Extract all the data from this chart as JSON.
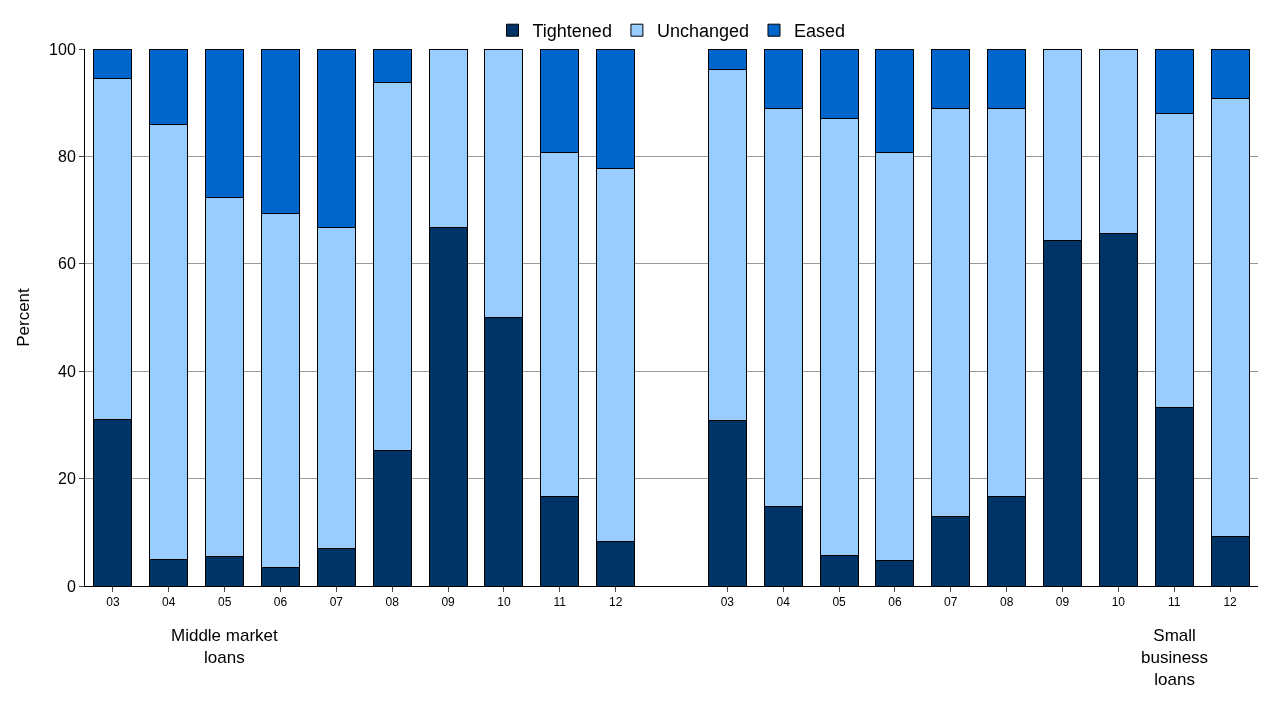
{
  "chart_data": {
    "type": "bar",
    "stacked": true,
    "ylabel": "Percent",
    "categories": [
      "03",
      "04",
      "05",
      "06",
      "07",
      "08",
      "09",
      "10",
      "11",
      "12",
      null,
      "03",
      "04",
      "05",
      "06",
      "07",
      "08",
      "09",
      "10",
      "11",
      "12"
    ],
    "series": [
      {
        "name": "Tightened",
        "color": "#003366",
        "values": [
          31,
          5,
          5.5,
          3.4,
          7,
          25.2,
          66.7,
          50,
          16.7,
          8.3,
          null,
          30.8,
          14.8,
          5.6,
          4.8,
          13,
          16.7,
          64.3,
          65.7,
          33.3,
          9.3
        ]
      },
      {
        "name": "Unchanged",
        "color": "#99ccff",
        "values": [
          63.5,
          81,
          66.8,
          66,
          59.8,
          68.5,
          33.3,
          50,
          64.1,
          69.5,
          null,
          65.4,
          74.1,
          81.4,
          76,
          75.9,
          72.2,
          35.7,
          34.3,
          54.6,
          81.4
        ]
      },
      {
        "name": "Eased",
        "color": "#0066cc",
        "values": [
          5.5,
          14,
          27.7,
          30.6,
          33.2,
          6.3,
          0,
          0,
          19.2,
          22.2,
          null,
          3.8,
          11.1,
          13,
          19.2,
          11.1,
          11.1,
          0,
          0,
          12.1,
          9.3
        ]
      }
    ],
    "ylim": [
      0,
      100
    ],
    "yticks": [
      0,
      20,
      40,
      60,
      80,
      100
    ],
    "grid": "y",
    "legend": "top",
    "annotations": [
      "Middle market\nloans",
      "Small\nbusiness\nloans"
    ]
  }
}
